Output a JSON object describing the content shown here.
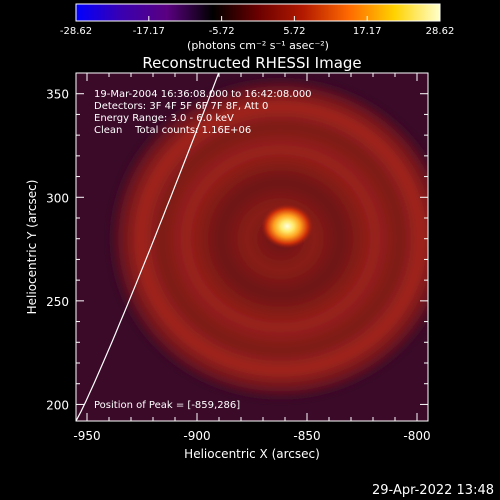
{
  "chart_data": {
    "type": "heatmap",
    "title": "Reconstructed RHESSI Image",
    "xlabel": "Heliocentric X (arcsec)",
    "ylabel": "Heliocentric Y (arcsec)",
    "xlim": [
      -955,
      -795
    ],
    "ylim": [
      192,
      360
    ],
    "x_ticks": [
      -950,
      -900,
      -850,
      -800
    ],
    "y_ticks": [
      200,
      250,
      300,
      350
    ],
    "x_tick_labels": [
      "-950",
      "-900",
      "-850",
      "-800"
    ],
    "y_tick_labels": [
      "200",
      "250",
      "300",
      "350"
    ],
    "colorbar": {
      "ticks": [
        -28.62,
        -17.17,
        -5.72,
        5.72,
        17.17,
        28.62
      ],
      "tick_labels": [
        "-28.62",
        "-17.17",
        "-5.72",
        "5.72",
        "17.17",
        "28.62"
      ],
      "unit_label": "(photons cm⁻² s⁻¹ asec⁻²)",
      "colors": [
        "#0000ff",
        "#3a00b0",
        "#5a0080",
        "#000000",
        "#6a0000",
        "#b31a00",
        "#ff6a00",
        "#ffd200",
        "#ffffcc"
      ]
    },
    "image": {
      "peak_value": 28.62,
      "peak_position": [
        -859,
        286
      ],
      "ring_center": [
        -862,
        280
      ],
      "ring_radius": 72,
      "background_color": "#3a0a28"
    },
    "annotations": {
      "time_range": "19-Mar-2004 16:36:08.000 to 16:42:08.000",
      "detectors": "Detectors: 3F 4F 5F 6F 7F 8F, Att 0",
      "energy": "Energy Range: 3.0 - 6.0 keV",
      "clean": "Clean    Total counts: 1.16E+06",
      "peak_label": "Position of Peak = [-859,286]"
    },
    "grid": false,
    "limb_curve": true
  },
  "footer": {
    "timestamp": "29-Apr-2022 13:48"
  }
}
